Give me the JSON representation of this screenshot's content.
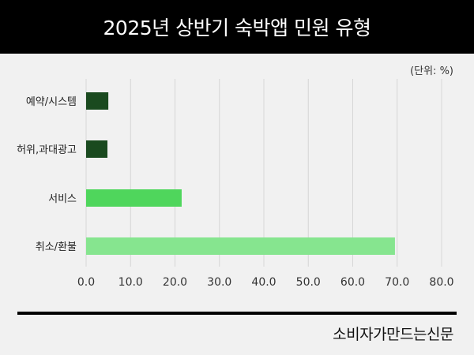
{
  "header": {
    "title": "2025년 상반기 숙박앱 민원 유형"
  },
  "unit_label": "(단위: %)",
  "footer": {
    "source": "소비자가만드는신문"
  },
  "chart_data": {
    "type": "bar",
    "orientation": "horizontal",
    "title": "2025년 상반기 숙박앱 민원 유형",
    "categories": [
      "예약/시스템",
      "허위,과대광고",
      "서비스",
      "취소/환불"
    ],
    "values": [
      5.0,
      4.8,
      21.5,
      69.5
    ],
    "colors": [
      "#1a4a1f",
      "#1a4a1f",
      "#4fd65c",
      "#86e58f"
    ],
    "xlim": [
      0,
      80
    ],
    "ticks": [
      "0.0",
      "10.0",
      "20.0",
      "30.0",
      "40.0",
      "50.0",
      "60.0",
      "70.0",
      "80.0"
    ],
    "tick_values": [
      0,
      10,
      20,
      30,
      40,
      50,
      60,
      70,
      80
    ],
    "grid": true,
    "legend": "none"
  }
}
